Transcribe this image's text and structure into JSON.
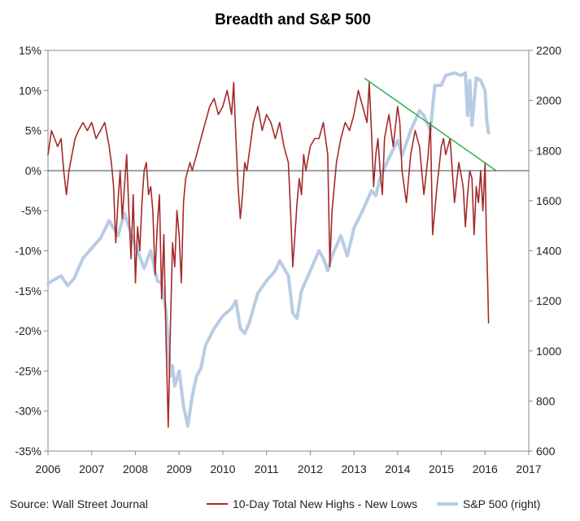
{
  "chart_data": {
    "type": "line",
    "title": "Breadth and S&P 500",
    "source": "Source: Wall Street Journal",
    "x_axis": {
      "range": [
        2006,
        2017
      ],
      "ticks": [
        "2006",
        "2007",
        "2008",
        "2009",
        "2010",
        "2011",
        "2012",
        "2013",
        "2014",
        "2015",
        "2016",
        "2017"
      ]
    },
    "y_left": {
      "range": [
        -35,
        15
      ],
      "unit": "%",
      "ticks": [
        "15%",
        "10%",
        "5%",
        "0%",
        "-5%",
        "-10%",
        "-15%",
        "-20%",
        "-25%",
        "-30%",
        "-35%"
      ]
    },
    "y_right": {
      "range": [
        600,
        2200
      ],
      "ticks": [
        "2200",
        "2000",
        "1800",
        "1600",
        "1400",
        "1200",
        "1000",
        "800",
        "600"
      ]
    },
    "legend_placement": "bottom",
    "gridlines": false,
    "series": [
      {
        "name": "10-Day Total New Highs - New Lows",
        "axis": "left",
        "color": "#a52a2a",
        "x": [
          2006.0,
          2006.08,
          2006.15,
          2006.22,
          2006.3,
          2006.36,
          2006.42,
          2006.48,
          2006.55,
          2006.62,
          2006.7,
          2006.8,
          2006.9,
          2007.0,
          2007.1,
          2007.2,
          2007.3,
          2007.4,
          2007.45,
          2007.5,
          2007.55,
          2007.6,
          2007.65,
          2007.7,
          2007.75,
          2007.8,
          2007.85,
          2007.9,
          2007.95,
          2008.0,
          2008.05,
          2008.1,
          2008.15,
          2008.2,
          2008.25,
          2008.3,
          2008.35,
          2008.4,
          2008.45,
          2008.5,
          2008.55,
          2008.6,
          2008.65,
          2008.7,
          2008.75,
          2008.8,
          2008.85,
          2008.9,
          2008.95,
          2009.0,
          2009.05,
          2009.1,
          2009.15,
          2009.2,
          2009.25,
          2009.3,
          2009.4,
          2009.5,
          2009.6,
          2009.7,
          2009.8,
          2009.9,
          2010.0,
          2010.1,
          2010.2,
          2010.25,
          2010.3,
          2010.35,
          2010.4,
          2010.45,
          2010.5,
          2010.55,
          2010.6,
          2010.7,
          2010.8,
          2010.9,
          2011.0,
          2011.1,
          2011.2,
          2011.3,
          2011.4,
          2011.5,
          2011.55,
          2011.6,
          2011.65,
          2011.7,
          2011.75,
          2011.8,
          2011.85,
          2011.9,
          2012.0,
          2012.1,
          2012.2,
          2012.3,
          2012.4,
          2012.45,
          2012.5,
          2012.6,
          2012.7,
          2012.8,
          2012.9,
          2013.0,
          2013.1,
          2013.2,
          2013.3,
          2013.35,
          2013.4,
          2013.45,
          2013.5,
          2013.55,
          2013.6,
          2013.65,
          2013.7,
          2013.8,
          2013.9,
          2014.0,
          2014.05,
          2014.1,
          2014.2,
          2014.3,
          2014.4,
          2014.5,
          2014.55,
          2014.6,
          2014.7,
          2014.75,
          2014.8,
          2014.9,
          2015.0,
          2015.05,
          2015.1,
          2015.2,
          2015.3,
          2015.4,
          2015.5,
          2015.55,
          2015.6,
          2015.65,
          2015.7,
          2015.75,
          2015.8,
          2015.85,
          2015.9,
          2015.95,
          2016.0,
          2016.03,
          2016.06,
          2016.08
        ],
        "values": [
          2,
          5,
          4,
          3,
          4,
          0,
          -3,
          0,
          2,
          4,
          5,
          6,
          5,
          6,
          4,
          5,
          6,
          3,
          1,
          -2,
          -9,
          -4,
          0,
          -6,
          -2,
          2,
          -5,
          -11,
          -3,
          -14,
          -7,
          -10,
          -4,
          0,
          1,
          -3,
          -2,
          -5,
          -13,
          -7,
          -3,
          -16,
          -8,
          -21,
          -32,
          -20,
          -9,
          -12,
          -5,
          -8,
          -14,
          -4,
          -1,
          0,
          1,
          0,
          2,
          4,
          6,
          8,
          9,
          7,
          8,
          10,
          7,
          11,
          4,
          -2,
          -6,
          -3,
          1,
          0,
          2,
          6,
          8,
          5,
          7,
          6,
          4,
          6,
          3,
          1,
          -5,
          -12,
          -8,
          -4,
          -1,
          -3,
          2,
          0,
          3,
          4,
          4,
          6,
          2,
          -12,
          -5,
          1,
          4,
          6,
          5,
          7,
          10,
          8,
          6,
          11,
          5,
          -2,
          2,
          4,
          0,
          -3,
          4,
          7,
          3,
          8,
          6,
          0,
          -4,
          2,
          5,
          3,
          0,
          -3,
          2,
          6,
          -8,
          -2,
          3,
          4,
          2,
          4,
          -4,
          1,
          -2,
          -7,
          -3,
          0,
          -1,
          -8,
          -2,
          -4,
          0,
          -5,
          1,
          -8,
          -14,
          -19
        ]
      },
      {
        "name": "S&P 500 (right)",
        "axis": "right",
        "color": "#b8cce4",
        "x": [
          2006.0,
          2006.3,
          2006.45,
          2006.6,
          2006.8,
          2007.0,
          2007.2,
          2007.4,
          2007.5,
          2007.6,
          2007.75,
          2007.9,
          2008.05,
          2008.2,
          2008.35,
          2008.5,
          2008.6,
          2008.7,
          2008.8,
          2008.85,
          2008.9,
          2009.0,
          2009.1,
          2009.2,
          2009.3,
          2009.4,
          2009.5,
          2009.6,
          2009.8,
          2010.0,
          2010.2,
          2010.3,
          2010.4,
          2010.5,
          2010.6,
          2010.8,
          2011.0,
          2011.2,
          2011.3,
          2011.5,
          2011.6,
          2011.7,
          2011.8,
          2012.0,
          2012.2,
          2012.3,
          2012.4,
          2012.5,
          2012.7,
          2012.85,
          2013.0,
          2013.2,
          2013.4,
          2013.5,
          2013.6,
          2013.8,
          2014.0,
          2014.1,
          2014.3,
          2014.5,
          2014.6,
          2014.75,
          2014.85,
          2015.0,
          2015.1,
          2015.3,
          2015.45,
          2015.55,
          2015.6,
          2015.65,
          2015.7,
          2015.8,
          2015.9,
          2016.0,
          2016.04,
          2016.08
        ],
        "values": [
          1270,
          1300,
          1260,
          1290,
          1370,
          1410,
          1450,
          1520,
          1490,
          1460,
          1550,
          1470,
          1400,
          1330,
          1400,
          1280,
          1270,
          1160,
          900,
          940,
          860,
          920,
          780,
          700,
          820,
          900,
          930,
          1020,
          1090,
          1140,
          1170,
          1200,
          1090,
          1070,
          1110,
          1230,
          1280,
          1320,
          1360,
          1300,
          1150,
          1130,
          1240,
          1320,
          1400,
          1370,
          1320,
          1380,
          1460,
          1380,
          1490,
          1560,
          1640,
          1620,
          1690,
          1770,
          1840,
          1780,
          1880,
          1960,
          1940,
          1880,
          2060,
          2060,
          2100,
          2110,
          2100,
          2110,
          1940,
          2080,
          1900,
          2090,
          2080,
          2040,
          1920,
          1870
        ]
      },
      {
        "name": "trendline",
        "axis": "left",
        "color": "#2db34a",
        "x": [
          2013.25,
          2016.25
        ],
        "values": [
          11.5,
          0
        ]
      }
    ]
  }
}
